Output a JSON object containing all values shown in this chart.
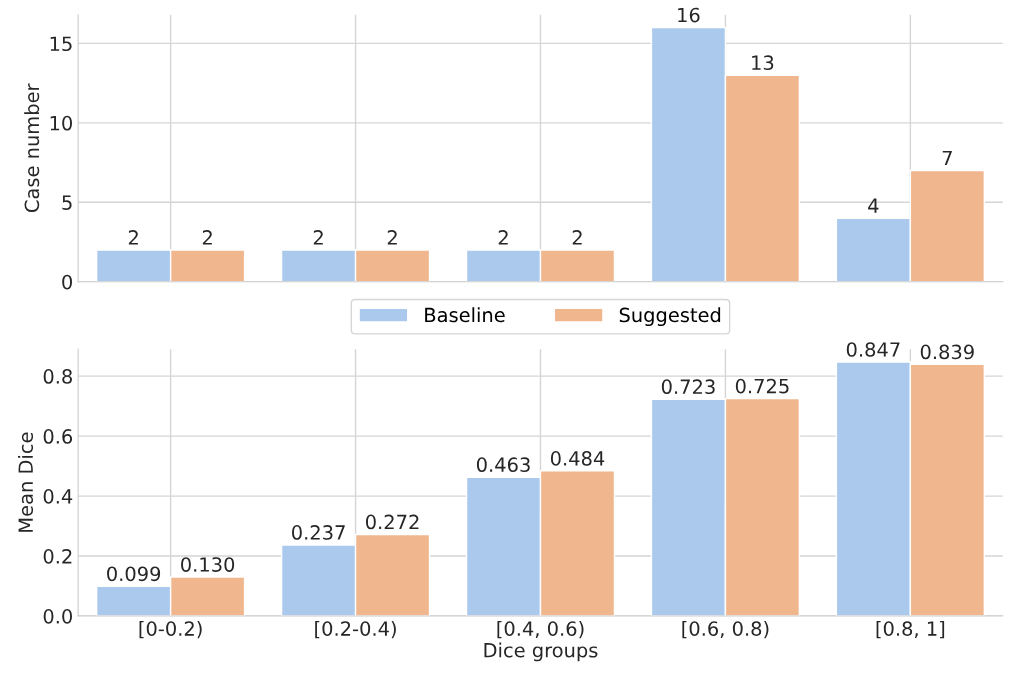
{
  "chart_data": [
    {
      "type": "bar",
      "ylabel": "Case number",
      "categories": [
        null,
        null,
        null,
        null,
        null
      ],
      "series": [
        {
          "name": "Baseline",
          "color": "#abc9ec",
          "values": [
            2,
            2,
            2,
            16,
            4
          ]
        },
        {
          "name": "Suggested",
          "color": "#f0b78f",
          "values": [
            2,
            2,
            2,
            13,
            7
          ]
        }
      ],
      "ylim": [
        0,
        16.8
      ],
      "yticks": [
        0,
        5,
        10,
        15
      ],
      "grid": true,
      "legend": "bottom",
      "data_labels": true,
      "tick_labels": "y"
    },
    {
      "type": "bar",
      "xlabel": "Dice groups",
      "ylabel": "Mean Dice",
      "categories": [
        "[0-0.2)",
        "[0.2-0.4)",
        "[0.4, 0.6)",
        "[0.6, 0.8)",
        "[0.8, 1]"
      ],
      "series": [
        {
          "color": "#abc9ec",
          "values": [
            0.099,
            0.237,
            0.463,
            0.723,
            0.847
          ],
          "value_labels": [
            "0.099",
            "0.237",
            "0.463",
            "0.723",
            "0.847"
          ]
        },
        {
          "color": "#f0b78f",
          "values": [
            0.13,
            0.272,
            0.484,
            0.725,
            0.839
          ],
          "value_labels": [
            "0.130",
            "0.272",
            "0.484",
            "0.725",
            "0.839"
          ]
        }
      ],
      "ylim": [
        0,
        0.89
      ],
      "yticks": [
        {
          "value": 0,
          "label": "0.0"
        },
        0.2,
        0.4,
        0.6,
        0.8
      ],
      "grid": true
    }
  ]
}
